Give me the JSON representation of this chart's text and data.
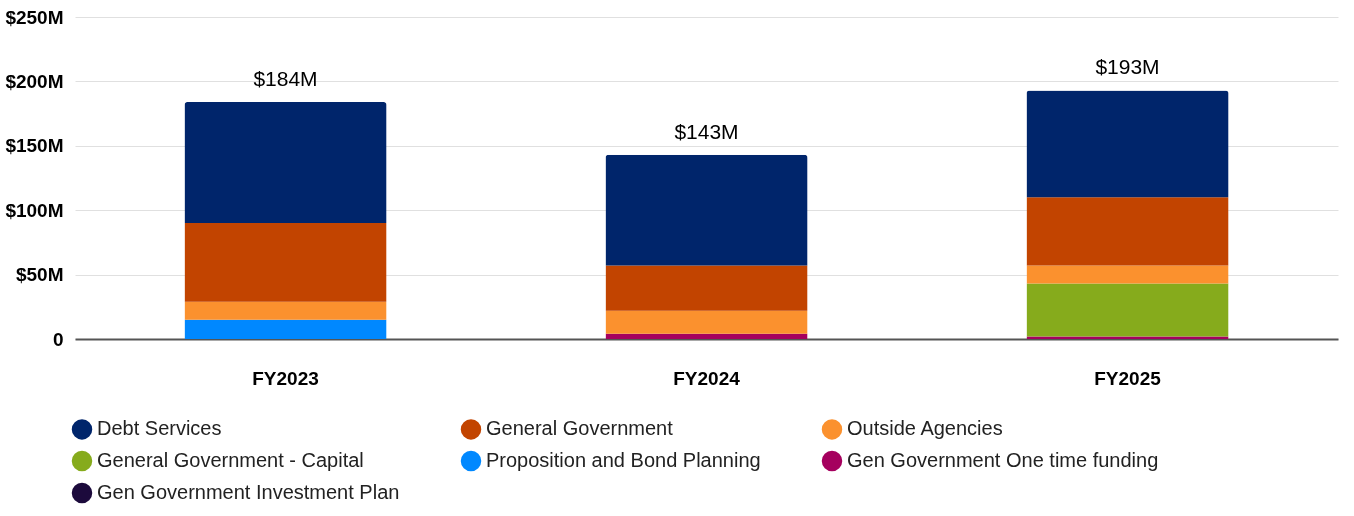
{
  "chart_data": {
    "type": "bar",
    "stacked": true,
    "categories": [
      "FY2023",
      "FY2024",
      "FY2025"
    ],
    "series": [
      {
        "name": "Gen Government Investment Plan",
        "color": "#1c0a3c",
        "values": [
          null,
          null,
          null
        ]
      },
      {
        "name": "Gen Government One time funding",
        "color": "#a5005e",
        "values": [
          null,
          4,
          2
        ]
      },
      {
        "name": "Proposition and Bond Planning",
        "color": "#0088ff",
        "values": [
          15,
          null,
          null
        ]
      },
      {
        "name": "General Government - Capital",
        "color": "#86ab1c",
        "values": [
          null,
          null,
          41
        ]
      },
      {
        "name": "Outside Agencies",
        "color": "#fb912e",
        "values": [
          14,
          18,
          14
        ]
      },
      {
        "name": "General Government",
        "color": "#c24400",
        "values": [
          61,
          35,
          53
        ]
      },
      {
        "name": "Debt Services",
        "color": "#00256b",
        "values": [
          94,
          86,
          83
        ]
      }
    ],
    "totals": [
      "$184M",
      "$143M",
      "$193M"
    ],
    "ylim": [
      0,
      250
    ],
    "yticks": [
      0,
      {
        "value": 50,
        "label": "$50M"
      },
      {
        "value": 100,
        "label": "$100M"
      },
      {
        "value": 150,
        "label": "$150M"
      },
      {
        "value": 200,
        "label": "$200M"
      },
      {
        "value": 250,
        "label": "$250M"
      }
    ],
    "grid": "y",
    "legend": "bottom"
  }
}
